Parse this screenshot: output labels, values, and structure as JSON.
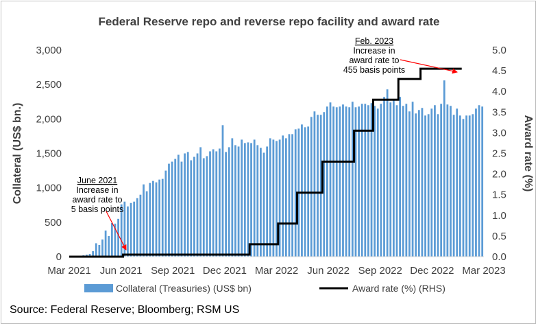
{
  "chart_data": {
    "type": "bar+line",
    "title": "Federal Reserve repo and reverse repo facility and award rate",
    "source": "Source: Federal Reserve; Bloomberg; RSM US",
    "left_axis": {
      "label": "Collateral (US$ bn.)",
      "ylim": [
        0,
        3000
      ],
      "ticks": [
        "0",
        "500",
        "1,000",
        "1,500",
        "2,000",
        "2,500",
        "3,000"
      ]
    },
    "right_axis": {
      "label": "Award rate (%)",
      "ylim": [
        0,
        5
      ],
      "ticks": [
        "0.0",
        "0.5",
        "1.0",
        "1.5",
        "2.0",
        "2.5",
        "3.0",
        "3.5",
        "4.0",
        "4.5",
        "5.0"
      ]
    },
    "x_axis": {
      "ticks": [
        "Mar 2021",
        "Jun 2021",
        "Sep 2021",
        "Dec 2021",
        "Mar 2022",
        "Jun 2022",
        "Sep 2022",
        "Dec 2022",
        "Mar 2023"
      ]
    },
    "series": [
      {
        "name": "Collateral (Treasuries) (US$ bn)",
        "kind": "bar",
        "color": "#5b9bd5",
        "values": [
          10,
          5,
          5,
          15,
          20,
          30,
          40,
          80,
          195,
          170,
          250,
          380,
          300,
          490,
          480,
          550,
          760,
          800,
          730,
          780,
          800,
          850,
          900,
          1050,
          950,
          1070,
          1100,
          1080,
          1120,
          1130,
          1250,
          1350,
          1380,
          1420,
          1480,
          1380,
          1500,
          1520,
          1400,
          1450,
          1500,
          1590,
          1430,
          1460,
          1530,
          1560,
          1530,
          1570,
          1910,
          1520,
          1590,
          1720,
          1620,
          1600,
          1700,
          1650,
          1660,
          1650,
          1700,
          1620,
          1580,
          1510,
          1600,
          1720,
          1700,
          1680,
          1700,
          1760,
          1720,
          1780,
          1780,
          1850,
          1860,
          1920,
          1880,
          1890,
          2030,
          2110,
          2060,
          2060,
          2100,
          2180,
          2240,
          2180,
          2170,
          2180,
          2210,
          2180,
          2170,
          2250,
          2170,
          2180,
          2220,
          2220,
          2200,
          2230,
          2190,
          2150,
          2220,
          2320,
          2430,
          2240,
          2270,
          2200,
          2320,
          2190,
          2220,
          2110,
          2250,
          2080,
          2130,
          2160,
          2050,
          2070,
          2150,
          2200,
          2070,
          2220,
          2560,
          2210,
          2190,
          2060,
          2150,
          2050,
          2000,
          2050,
          2050,
          2070,
          2150,
          2200,
          2180
        ]
      },
      {
        "name": "Award rate (%) (RHS)",
        "kind": "step-line",
        "color": "#000000",
        "points": [
          [
            0,
            0
          ],
          [
            17,
            0
          ],
          [
            17,
            0.05
          ],
          [
            57,
            0.05
          ],
          [
            57,
            0.3
          ],
          [
            66,
            0.3
          ],
          [
            66,
            0.8
          ],
          [
            72,
            0.8
          ],
          [
            72,
            1.55
          ],
          [
            80,
            1.55
          ],
          [
            80,
            2.3
          ],
          [
            90,
            2.3
          ],
          [
            90,
            3.05
          ],
          [
            96,
            3.05
          ],
          [
            96,
            3.8
          ],
          [
            104,
            3.8
          ],
          [
            104,
            4.3
          ],
          [
            111,
            4.3
          ],
          [
            111,
            4.55
          ],
          [
            124,
            4.55
          ]
        ]
      }
    ],
    "annotations": [
      {
        "date": "June 2021",
        "lines": [
          "Increase in",
          "award rate to",
          "5 basis points"
        ]
      },
      {
        "date": "Feb. 2023",
        "lines": [
          "Increase in",
          "award rate to",
          "455 basis points"
        ]
      }
    ],
    "legend_position": "bottom"
  }
}
